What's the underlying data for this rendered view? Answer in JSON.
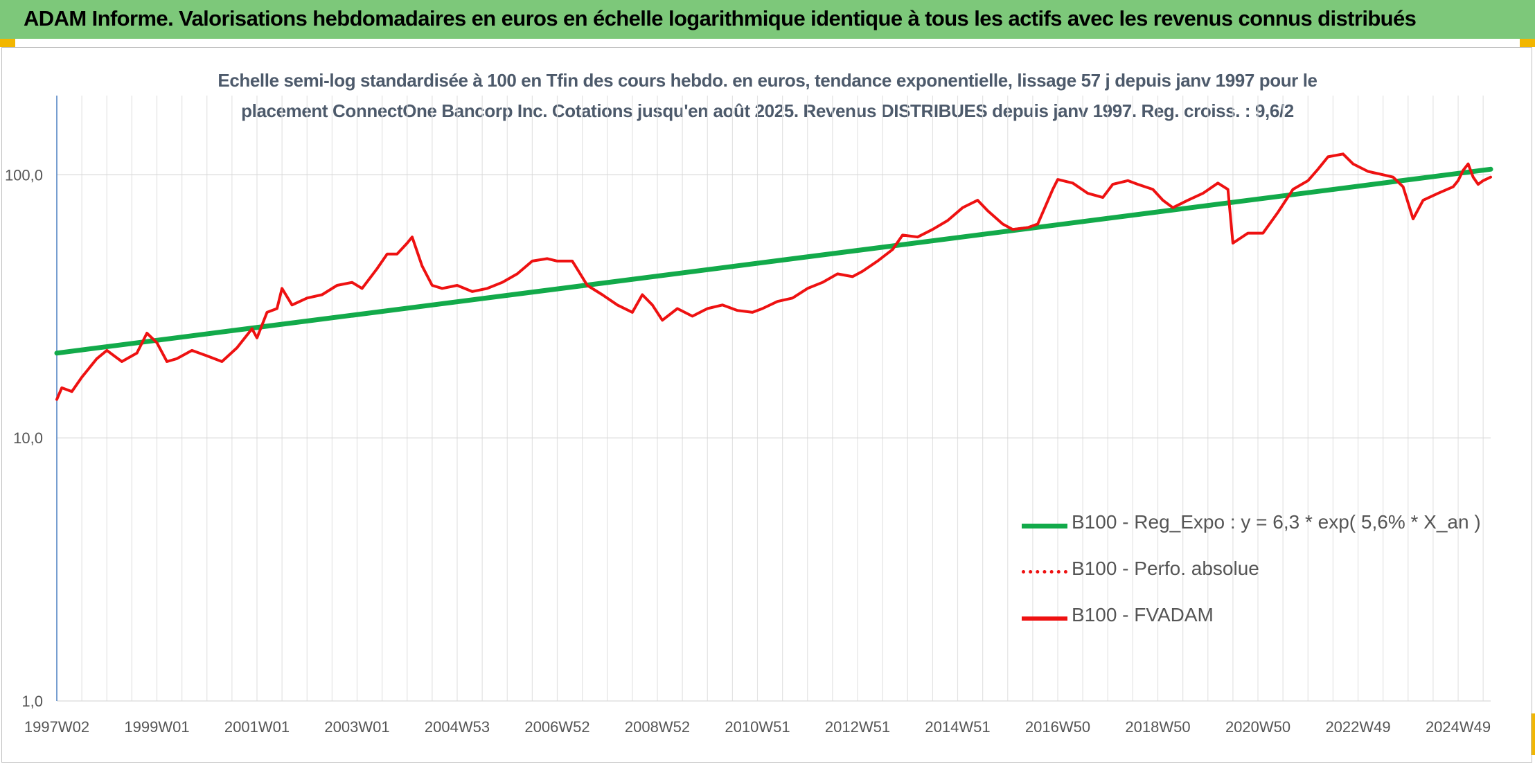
{
  "header": {
    "title": "ADAM Informe. Valorisations hebdomadaires en euros en échelle logarithmique identique à tous les actifs avec les revenus connus distribués"
  },
  "chart_data": {
    "type": "line",
    "subtitle_lines": [
      "Echelle semi-log standardisée à 100 en Tfin des cours hebdo. en euros, tendance exponentielle, lissage 57 j depuis janv 1997 pour le",
      "placement ConnectOne Bancorp Inc. Cotations jusqu'en août 2025. Revenus DISTRIBUES depuis janv 1997. Reg. croiss. : 9,6/2"
    ],
    "y_scale": "log",
    "ylim": [
      1,
      200
    ],
    "xlim": [
      1997.0,
      2025.65
    ],
    "yticks": [
      {
        "value": 1,
        "label": "1,0"
      },
      {
        "value": 10,
        "label": "10,0"
      },
      {
        "value": 100,
        "label": "100,0"
      }
    ],
    "xticks": [
      {
        "value": 1997.0,
        "label": "1997W02"
      },
      {
        "value": 1999.0,
        "label": "1999W01"
      },
      {
        "value": 2001.0,
        "label": "2001W01"
      },
      {
        "value": 2003.0,
        "label": "2003W01"
      },
      {
        "value": 2005.0,
        "label": "2004W53"
      },
      {
        "value": 2007.0,
        "label": "2006W52"
      },
      {
        "value": 2009.0,
        "label": "2008W52"
      },
      {
        "value": 2011.0,
        "label": "2010W51"
      },
      {
        "value": 2013.0,
        "label": "2012W51"
      },
      {
        "value": 2015.0,
        "label": "2014W51"
      },
      {
        "value": 2017.0,
        "label": "2016W50"
      },
      {
        "value": 2019.0,
        "label": "2018W50"
      },
      {
        "value": 2021.0,
        "label": "2020W50"
      },
      {
        "value": 2023.0,
        "label": "2022W49"
      },
      {
        "value": 2025.0,
        "label": "2024W49"
      }
    ],
    "grid": true,
    "legend_position": "bottom-right",
    "series": [
      {
        "name": "B100 - Reg_Expo : y = 6,3 * exp( 5,6% *  X_an )",
        "color": "#12aa4a",
        "style": "solid-thick",
        "points": [
          [
            1997.0,
            21
          ],
          [
            2025.65,
            105
          ]
        ]
      },
      {
        "name": "B100 - Perfo. absolue",
        "color": "#ee1111",
        "style": "dotted",
        "points": []
      },
      {
        "name": "B100 - FVADAM",
        "color": "#ee1111",
        "style": "solid",
        "points": [
          [
            1997.0,
            14
          ],
          [
            1997.1,
            15.5
          ],
          [
            1997.3,
            15
          ],
          [
            1997.5,
            17
          ],
          [
            1997.8,
            20
          ],
          [
            1998.0,
            21.5
          ],
          [
            1998.3,
            19.5
          ],
          [
            1998.6,
            21
          ],
          [
            1998.8,
            25
          ],
          [
            1999.0,
            23
          ],
          [
            1999.2,
            19.5
          ],
          [
            1999.4,
            20
          ],
          [
            1999.7,
            21.5
          ],
          [
            2000.0,
            20.5
          ],
          [
            2000.3,
            19.5
          ],
          [
            2000.6,
            22
          ],
          [
            2000.9,
            26
          ],
          [
            2001.0,
            24
          ],
          [
            2001.2,
            30
          ],
          [
            2001.4,
            31
          ],
          [
            2001.5,
            37
          ],
          [
            2001.7,
            32
          ],
          [
            2002.0,
            34
          ],
          [
            2002.3,
            35
          ],
          [
            2002.6,
            38
          ],
          [
            2002.9,
            39
          ],
          [
            2003.1,
            37
          ],
          [
            2003.4,
            44
          ],
          [
            2003.6,
            50
          ],
          [
            2003.8,
            50
          ],
          [
            2004.0,
            55
          ],
          [
            2004.1,
            58
          ],
          [
            2004.3,
            45
          ],
          [
            2004.5,
            38
          ],
          [
            2004.7,
            37
          ],
          [
            2005.0,
            38
          ],
          [
            2005.3,
            36
          ],
          [
            2005.6,
            37
          ],
          [
            2005.9,
            39
          ],
          [
            2006.2,
            42
          ],
          [
            2006.5,
            47
          ],
          [
            2006.8,
            48
          ],
          [
            2007.0,
            47
          ],
          [
            2007.3,
            47
          ],
          [
            2007.6,
            38
          ],
          [
            2007.9,
            35
          ],
          [
            2008.2,
            32
          ],
          [
            2008.5,
            30
          ],
          [
            2008.7,
            35
          ],
          [
            2008.9,
            32
          ],
          [
            2009.1,
            28
          ],
          [
            2009.4,
            31
          ],
          [
            2009.7,
            29
          ],
          [
            2010.0,
            31
          ],
          [
            2010.3,
            32
          ],
          [
            2010.6,
            30.5
          ],
          [
            2010.9,
            30
          ],
          [
            2011.1,
            31
          ],
          [
            2011.4,
            33
          ],
          [
            2011.7,
            34
          ],
          [
            2012.0,
            37
          ],
          [
            2012.3,
            39
          ],
          [
            2012.6,
            42
          ],
          [
            2012.9,
            41
          ],
          [
            2013.1,
            43
          ],
          [
            2013.4,
            47
          ],
          [
            2013.7,
            52
          ],
          [
            2013.9,
            59
          ],
          [
            2014.2,
            58
          ],
          [
            2014.5,
            62
          ],
          [
            2014.8,
            67
          ],
          [
            2015.1,
            75
          ],
          [
            2015.4,
            80
          ],
          [
            2015.6,
            73
          ],
          [
            2015.9,
            65
          ],
          [
            2016.1,
            62
          ],
          [
            2016.4,
            63
          ],
          [
            2016.6,
            65
          ],
          [
            2016.9,
            88
          ],
          [
            2017.0,
            96
          ],
          [
            2017.3,
            93
          ],
          [
            2017.6,
            85
          ],
          [
            2017.9,
            82
          ],
          [
            2018.1,
            92
          ],
          [
            2018.4,
            95
          ],
          [
            2018.6,
            92
          ],
          [
            2018.9,
            88
          ],
          [
            2019.1,
            80
          ],
          [
            2019.3,
            75
          ],
          [
            2019.6,
            80
          ],
          [
            2019.9,
            85
          ],
          [
            2020.2,
            93
          ],
          [
            2020.4,
            88
          ],
          [
            2020.5,
            55
          ],
          [
            2020.8,
            60
          ],
          [
            2021.1,
            60
          ],
          [
            2021.4,
            72
          ],
          [
            2021.7,
            88
          ],
          [
            2022.0,
            95
          ],
          [
            2022.2,
            105
          ],
          [
            2022.4,
            117
          ],
          [
            2022.7,
            120
          ],
          [
            2022.9,
            110
          ],
          [
            2023.2,
            103
          ],
          [
            2023.5,
            100
          ],
          [
            2023.7,
            98
          ],
          [
            2023.9,
            90
          ],
          [
            2024.1,
            68
          ],
          [
            2024.3,
            80
          ],
          [
            2024.6,
            85
          ],
          [
            2024.9,
            90
          ],
          [
            2025.0,
            95
          ],
          [
            2025.1,
            104
          ],
          [
            2025.2,
            110
          ],
          [
            2025.3,
            98
          ],
          [
            2025.4,
            92
          ],
          [
            2025.5,
            95
          ],
          [
            2025.65,
            98
          ]
        ]
      }
    ]
  }
}
